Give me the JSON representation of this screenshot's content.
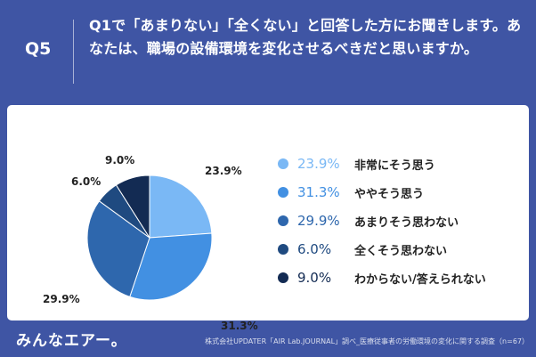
{
  "header": {
    "q_label": "Q5",
    "question": "Q1で「あまりない」「全くない」と回答した方にお聞きします。あなたは、職場の設備環境を変化させるべきだと思いますか。"
  },
  "chart_data": {
    "type": "pie",
    "title": "",
    "slices": [
      {
        "label": "非常にそう思う",
        "value": 23.9,
        "value_text": "23.9%",
        "color": "#7ab8f5"
      },
      {
        "label": "ややそう思う",
        "value": 31.3,
        "value_text": "31.3%",
        "color": "#4290e2"
      },
      {
        "label": "あまりそう思わない",
        "value": 29.9,
        "value_text": "29.9%",
        "color": "#2e67ad"
      },
      {
        "label": "全くそう思わない",
        "value": 6.0,
        "value_text": "6.0%",
        "color": "#1f4a80"
      },
      {
        "label": "わからない/答えられない",
        "value": 9.0,
        "value_text": "9.0%",
        "color": "#132b53"
      }
    ],
    "legend_position": "right"
  },
  "footer": {
    "logo": "みんなエアー。",
    "source": "株式会社UPDATER「AIR Lab.JOURNAL」調べ_医療従事者の労働環境の変化に関する調査（n=67）"
  }
}
